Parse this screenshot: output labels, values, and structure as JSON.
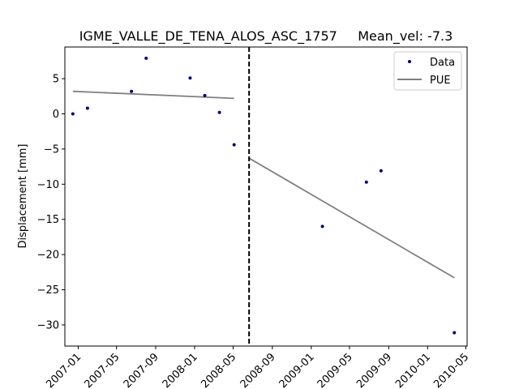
{
  "chart_data": {
    "type": "scatter",
    "title": "IGME_VALLE_DE_TENA_ALOS_ASC_1757     Mean_vel: -7.3",
    "xlabel": "",
    "ylabel": "Displacement [mm]",
    "xlim": [
      "2006-11-20",
      "2010-05-05"
    ],
    "ylim": [
      -33,
      9.5
    ],
    "yticks": [
      5,
      0,
      -5,
      -10,
      -15,
      -20,
      -25,
      -30
    ],
    "ytick_labels": [
      "5",
      "0",
      "−5",
      "−10",
      "−15",
      "−20",
      "−25",
      "−30"
    ],
    "xticks": [
      "2007-01-01",
      "2007-05-01",
      "2007-09-01",
      "2008-01-01",
      "2008-05-01",
      "2008-09-01",
      "2009-01-01",
      "2009-05-01",
      "2009-09-01",
      "2010-01-01",
      "2010-05-01"
    ],
    "xtick_labels": [
      "2007-01",
      "2007-05",
      "2007-09",
      "2008-01",
      "2008-05",
      "2008-09",
      "2009-01",
      "2009-05",
      "2009-09",
      "2010-01",
      "2010-05"
    ],
    "series": [
      {
        "name": "Data",
        "kind": "points",
        "color": "#000080",
        "x": [
          "2006-12-15",
          "2007-01-30",
          "2007-06-17",
          "2007-08-02",
          "2007-12-18",
          "2008-02-02",
          "2008-03-19",
          "2008-05-04",
          "2009-02-05",
          "2009-06-23",
          "2009-08-08",
          "2010-03-26"
        ],
        "y": [
          0.0,
          0.8,
          3.2,
          7.9,
          5.1,
          2.6,
          0.2,
          -4.4,
          -16.0,
          -9.7,
          -8.1,
          -31.1
        ]
      },
      {
        "name": "PUE",
        "kind": "segments",
        "color": "#808080",
        "segments": [
          {
            "x": [
              "2006-12-15",
              "2008-05-04"
            ],
            "y": [
              3.2,
              2.2
            ]
          },
          {
            "x": [
              "2008-06-20",
              "2010-03-26"
            ],
            "y": [
              -6.3,
              -23.3
            ]
          }
        ]
      }
    ],
    "vline": {
      "x": "2008-06-20",
      "style": "dashed",
      "color": "#000000"
    },
    "legend": {
      "position": "top-right",
      "entries": [
        "Data",
        "PUE"
      ]
    }
  }
}
